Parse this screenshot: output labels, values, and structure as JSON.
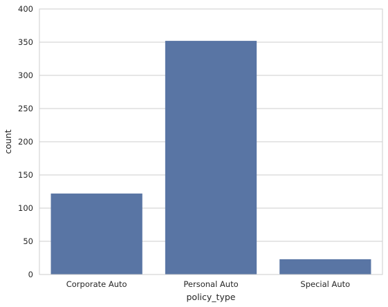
{
  "chart_data": {
    "type": "bar",
    "categories": [
      "Corporate Auto",
      "Personal Auto",
      "Special Auto"
    ],
    "values": [
      122,
      352,
      23
    ],
    "title": "",
    "xlabel": "policy_type",
    "ylabel": "count",
    "ylim": [
      0,
      400
    ],
    "yticks": [
      0,
      50,
      100,
      150,
      200,
      250,
      300,
      350,
      400
    ],
    "grid": "horizontal",
    "legend": "none",
    "colors": {
      "bar": "#5975a4",
      "grid": "#cccccc",
      "frame": "#cccccc",
      "text": "#262626",
      "background": "#ffffff"
    }
  }
}
